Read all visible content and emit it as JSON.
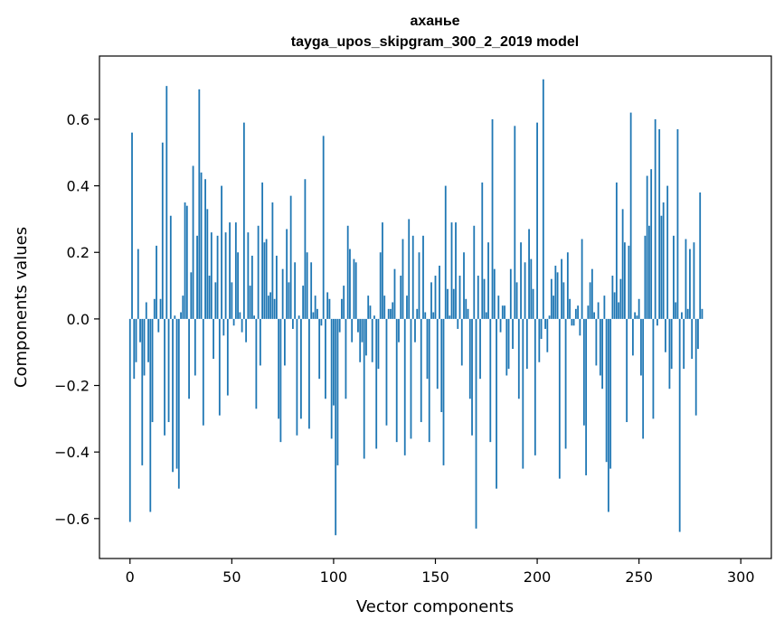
{
  "chart_data": {
    "type": "bar",
    "title": "аханье",
    "subtitle": "tayga_upos_skipgram_300_2_2019 model",
    "xlabel": "Vector components",
    "ylabel": "Components values",
    "xlim": [
      -15,
      315
    ],
    "ylim": [
      -0.72,
      0.79
    ],
    "xticks": [
      0,
      50,
      100,
      150,
      200,
      250,
      300
    ],
    "xtick_labels": [
      "0",
      "50",
      "100",
      "150",
      "200",
      "250",
      "300"
    ],
    "yticks": [
      -0.6,
      -0.4,
      -0.2,
      0.0,
      0.2,
      0.4,
      0.6
    ],
    "ytick_labels": [
      "−0.6",
      "−0.4",
      "−0.2",
      "0.0",
      "0.2",
      "0.4",
      "0.6"
    ],
    "grid": false,
    "bar_color": "#1f77b4",
    "x_start": 0,
    "values": [
      -0.61,
      0.56,
      -0.18,
      -0.13,
      0.21,
      -0.07,
      -0.44,
      -0.17,
      0.05,
      -0.13,
      -0.58,
      -0.31,
      0.06,
      0.22,
      -0.04,
      0.06,
      0.53,
      -0.35,
      0.7,
      -0.31,
      0.31,
      -0.46,
      0.01,
      -0.45,
      -0.51,
      0.02,
      0.07,
      0.35,
      0.34,
      -0.24,
      0.14,
      0.46,
      -0.17,
      0.25,
      0.69,
      0.44,
      -0.32,
      0.42,
      0.33,
      0.13,
      0.26,
      -0.12,
      0.11,
      0.25,
      -0.29,
      0.4,
      -0.05,
      0.26,
      -0.23,
      0.29,
      0.11,
      -0.02,
      0.29,
      0.2,
      0.02,
      -0.04,
      0.59,
      -0.07,
      0.26,
      0.1,
      0.19,
      0.01,
      -0.27,
      0.28,
      -0.14,
      0.41,
      0.23,
      0.24,
      0.07,
      0.08,
      0.35,
      0.06,
      0.19,
      -0.3,
      -0.37,
      0.15,
      -0.14,
      0.27,
      0.11,
      0.37,
      -0.03,
      0.17,
      -0.35,
      0.01,
      -0.3,
      0.1,
      0.42,
      0.2,
      -0.33,
      0.17,
      0.02,
      0.07,
      0.03,
      -0.18,
      -0.02,
      0.55,
      -0.24,
      0.08,
      0.06,
      -0.36,
      -0.26,
      -0.65,
      -0.44,
      -0.04,
      0.06,
      0.1,
      -0.24,
      0.28,
      0.21,
      -0.07,
      0.18,
      0.17,
      -0.04,
      -0.13,
      -0.07,
      -0.42,
      -0.11,
      0.07,
      0.04,
      -0.13,
      0.01,
      -0.39,
      -0.15,
      0.2,
      0.29,
      0.07,
      -0.32,
      0.03,
      0.03,
      0.05,
      0.15,
      -0.37,
      -0.07,
      0.13,
      0.24,
      -0.41,
      0.07,
      0.3,
      -0.36,
      0.25,
      -0.07,
      0.03,
      0.2,
      -0.31,
      0.25,
      0.02,
      -0.18,
      -0.37,
      0.11,
      0.02,
      0.13,
      -0.21,
      0.16,
      -0.28,
      -0.44,
      0.4,
      0.09,
      0.01,
      0.29,
      0.09,
      0.29,
      -0.03,
      0.13,
      -0.14,
      0.2,
      0.06,
      0.03,
      -0.24,
      -0.35,
      0.28,
      -0.63,
      0.13,
      -0.18,
      0.41,
      0.12,
      0.02,
      0.23,
      -0.37,
      0.6,
      0.15,
      -0.51,
      0.07,
      -0.04,
      0.04,
      0.04,
      -0.17,
      -0.15,
      0.15,
      -0.09,
      0.58,
      0.11,
      -0.24,
      0.23,
      -0.45,
      0.17,
      -0.15,
      0.27,
      0.18,
      0.09,
      -0.41,
      0.59,
      -0.13,
      -0.06,
      0.72,
      -0.03,
      -0.1,
      0.01,
      0.12,
      0.07,
      0.16,
      0.14,
      -0.48,
      0.18,
      0.11,
      -0.39,
      0.2,
      0.06,
      -0.02,
      -0.02,
      0.03,
      0.04,
      -0.05,
      0.24,
      -0.32,
      -0.47,
      0.04,
      0.11,
      0.15,
      0.02,
      -0.14,
      0.05,
      -0.17,
      -0.21,
      0.07,
      -0.43,
      -0.58,
      -0.45,
      0.13,
      0.08,
      0.41,
      0.05,
      0.12,
      0.33,
      0.23,
      -0.31,
      0.22,
      0.62,
      -0.11,
      0.02,
      0.01,
      0.06,
      -0.17,
      -0.36,
      0.25,
      0.43,
      0.28,
      0.45,
      -0.3,
      0.6,
      -0.02,
      0.57,
      0.31,
      0.35,
      -0.1,
      0.4,
      -0.21,
      -0.15,
      0.25,
      0.05,
      0.57,
      -0.64,
      0.02,
      -0.15,
      0.24,
      0.03,
      0.21,
      -0.12,
      0.23,
      -0.29,
      -0.09,
      0.38,
      0.03
    ]
  }
}
